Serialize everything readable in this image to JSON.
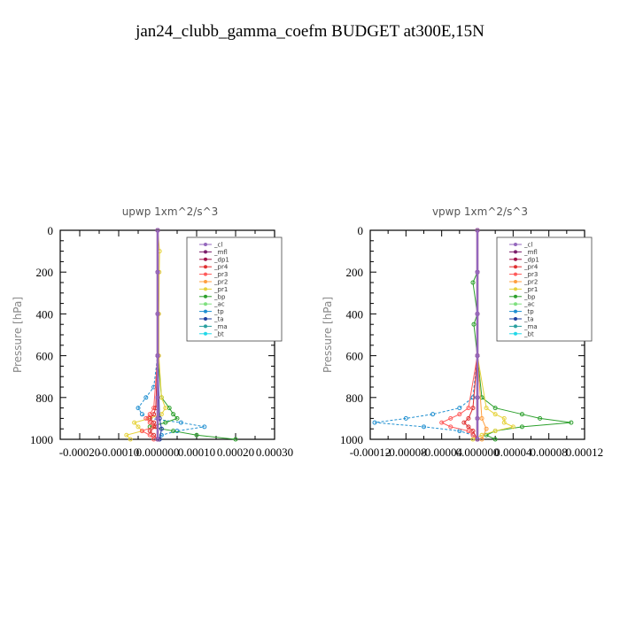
{
  "figure": {
    "title": "jan24_clubb_gamma_coefm  BUDGET at300E,15N"
  },
  "legend_entries": [
    {
      "label": "_cl",
      "color": "#9467bd"
    },
    {
      "label": "_mfl",
      "color": "#7b1f6b"
    },
    {
      "label": "_dp1",
      "color": "#a0134a"
    },
    {
      "label": "_pr4",
      "color": "#e03030"
    },
    {
      "label": "_pr3",
      "color": "#ff5a5a"
    },
    {
      "label": "_pr2",
      "color": "#ff9f40"
    },
    {
      "label": "_pr1",
      "color": "#e6d23a"
    },
    {
      "label": "_bp",
      "color": "#2ca02c"
    },
    {
      "label": "_ac",
      "color": "#7fe07f"
    },
    {
      "label": "_tp",
      "color": "#1f8fd0"
    },
    {
      "label": "_ta",
      "color": "#1f3fa0"
    },
    {
      "label": "_ma",
      "color": "#2aa0a0"
    },
    {
      "label": "_bt",
      "color": "#22d8e8"
    }
  ],
  "chart_data": [
    {
      "type": "line",
      "title": "upwp   1xm^2/s^3",
      "ylabel": "Pressure [hPa]",
      "xlabel": "",
      "xlim": [
        -0.00025,
        0.0003
      ],
      "ylim": [
        1000,
        0
      ],
      "x_ticks": [
        -0.0002,
        -0.0001,
        0.0,
        0.0001,
        0.0002,
        0.0003
      ],
      "x_tick_labels": [
        "-0.00020",
        "-0.00010",
        "0.000000",
        "0.00010",
        "0.00020",
        "0.00030"
      ],
      "y_ticks": [
        0,
        200,
        400,
        600,
        800,
        1000
      ],
      "y_tick_labels": [
        "0",
        "200",
        "400",
        "600",
        "800",
        "1000"
      ],
      "legend_position": "top-right",
      "series": [
        {
          "name": "_tp",
          "pressure": [
            0,
            600,
            750,
            800,
            850,
            880,
            900,
            920,
            940,
            960,
            980,
            1000
          ],
          "values": [
            0,
            0,
            -1e-05,
            -3e-05,
            -5e-05,
            -4e-05,
            -2e-05,
            6e-05,
            0.00012,
            5e-05,
            1e-05,
            0
          ]
        },
        {
          "name": "_bp",
          "pressure": [
            0,
            600,
            800,
            850,
            880,
            900,
            920,
            940,
            960,
            980,
            1000
          ],
          "values": [
            0,
            0,
            1e-05,
            3e-05,
            4e-05,
            5e-05,
            2e-05,
            -2e-05,
            4e-05,
            0.0001,
            0.0002
          ]
        },
        {
          "name": "_pr1",
          "pressure": [
            0,
            100,
            200,
            400,
            600,
            800,
            850,
            880,
            900,
            920,
            940,
            960,
            980,
            1000
          ],
          "values": [
            0,
            5e-06,
            4e-06,
            3e-06,
            3e-06,
            1e-05,
            2e-05,
            1e-05,
            -2e-05,
            -6e-05,
            -5e-05,
            -4e-05,
            -8e-05,
            -7e-05
          ]
        },
        {
          "name": "_pr3",
          "pressure": [
            0,
            600,
            850,
            880,
            900,
            920,
            940,
            960,
            980,
            1000
          ],
          "values": [
            0,
            0,
            -1e-05,
            -2e-05,
            -3e-05,
            -2e-05,
            -1e-05,
            -4e-05,
            -2e-05,
            -1e-05
          ]
        },
        {
          "name": "_pr4",
          "pressure": [
            0,
            600,
            850,
            880,
            900,
            920,
            940,
            960,
            980,
            1000
          ],
          "values": [
            0,
            0,
            -5e-06,
            -1e-05,
            -2e-05,
            -1e-05,
            -5e-06,
            -2e-05,
            -1e-05,
            0
          ]
        },
        {
          "name": "_ta",
          "pressure": [
            0,
            600,
            900,
            950,
            1000
          ],
          "values": [
            0,
            0,
            5e-06,
            1e-05,
            5e-06
          ]
        },
        {
          "name": "_dp1",
          "pressure": [
            0,
            200,
            400,
            600,
            800,
            900,
            1000
          ],
          "values": [
            0,
            0,
            0,
            0,
            0,
            0,
            0
          ]
        },
        {
          "name": "_mfl",
          "pressure": [
            0,
            200,
            400,
            600,
            800,
            900,
            1000
          ],
          "values": [
            0,
            0,
            0,
            0,
            0,
            0,
            0
          ]
        },
        {
          "name": "_cl",
          "pressure": [
            0,
            200,
            400,
            600,
            800,
            900,
            1000
          ],
          "values": [
            0,
            0,
            0,
            0,
            0,
            0,
            0
          ]
        }
      ]
    },
    {
      "type": "line",
      "title": "vpwp   1xm^2/s^3",
      "ylabel": "Pressure [hPa]",
      "xlabel": "",
      "xlim": [
        -0.00012,
        0.00012
      ],
      "ylim": [
        1000,
        0
      ],
      "x_ticks": [
        -0.00012,
        -8e-05,
        -4e-05,
        0.0,
        4e-05,
        8e-05,
        0.00012
      ],
      "x_tick_labels": [
        "-0.00012",
        "-0.00008",
        "-0.00004",
        "0.000000",
        "0.00004",
        "0.00008",
        "0.00012"
      ],
      "y_ticks": [
        0,
        200,
        400,
        600,
        800,
        1000
      ],
      "y_tick_labels": [
        "0",
        "200",
        "400",
        "600",
        "800",
        "1000"
      ],
      "legend_position": "top-right",
      "series": [
        {
          "name": "_tp",
          "pressure": [
            0,
            600,
            800,
            850,
            880,
            900,
            920,
            940,
            960,
            980,
            1000
          ],
          "values": [
            0,
            0,
            -5e-06,
            -2e-05,
            -5e-05,
            -8e-05,
            -0.000115,
            -6e-05,
            -2e-05,
            -5e-06,
            0
          ]
        },
        {
          "name": "_bp",
          "pressure": [
            0,
            200,
            250,
            400,
            450,
            600,
            800,
            850,
            880,
            900,
            920,
            940,
            960,
            980,
            1000
          ],
          "values": [
            0,
            0,
            -5e-06,
            0,
            -4e-06,
            0,
            5e-06,
            2e-05,
            5e-05,
            7e-05,
            0.000105,
            5e-05,
            2e-05,
            1e-05,
            2e-05
          ]
        },
        {
          "name": "_pr1",
          "pressure": [
            0,
            600,
            850,
            880,
            900,
            920,
            940,
            960,
            980,
            1000
          ],
          "values": [
            0,
            0,
            1e-05,
            2e-05,
            3e-05,
            3e-05,
            4e-05,
            2e-05,
            5e-06,
            -5e-06
          ]
        },
        {
          "name": "_pr3",
          "pressure": [
            0,
            600,
            850,
            880,
            900,
            920,
            940,
            960,
            980,
            1000
          ],
          "values": [
            0,
            0,
            -1e-05,
            -2e-05,
            -3e-05,
            -4e-05,
            -3e-05,
            -1e-05,
            -5e-06,
            0
          ]
        },
        {
          "name": "_pr4",
          "pressure": [
            0,
            600,
            850,
            900,
            920,
            940,
            960,
            1000
          ],
          "values": [
            0,
            0,
            -5e-06,
            -1e-05,
            -1.5e-05,
            -1e-05,
            -5e-06,
            0
          ]
        },
        {
          "name": "_pr2",
          "pressure": [
            0,
            600,
            900,
            950,
            1000
          ],
          "values": [
            0,
            0,
            5e-06,
            1e-05,
            5e-06
          ]
        },
        {
          "name": "_dp1",
          "pressure": [
            0,
            200,
            400,
            600,
            800,
            900,
            1000
          ],
          "values": [
            0,
            0,
            0,
            0,
            0,
            0,
            0
          ]
        },
        {
          "name": "_mfl",
          "pressure": [
            0,
            200,
            400,
            600,
            800,
            900,
            1000
          ],
          "values": [
            0,
            0,
            0,
            0,
            0,
            0,
            0
          ]
        },
        {
          "name": "_cl",
          "pressure": [
            0,
            200,
            400,
            600,
            800,
            900,
            1000
          ],
          "values": [
            0,
            0,
            0,
            0,
            0,
            0,
            0
          ]
        }
      ]
    }
  ]
}
